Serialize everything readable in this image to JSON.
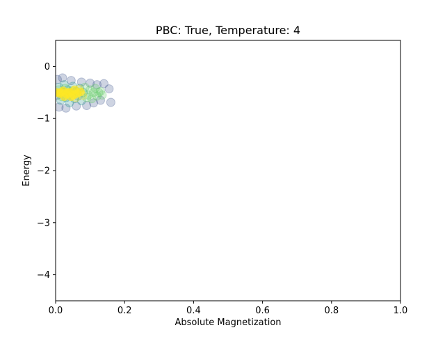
{
  "chart_data": {
    "type": "scatter",
    "title": "PBC: True, Temperature: 4",
    "xlabel": "Absolute Magnetization",
    "ylabel": "Energy",
    "xlim": [
      0.0,
      1.0
    ],
    "ylim": [
      -4.5,
      0.5
    ],
    "xticks": [
      {
        "value": 0.0,
        "label": "0.0"
      },
      {
        "value": 0.2,
        "label": "0.2"
      },
      {
        "value": 0.4,
        "label": "0.4"
      },
      {
        "value": 0.6,
        "label": "0.6"
      },
      {
        "value": 0.8,
        "label": "0.8"
      },
      {
        "value": 1.0,
        "label": "1.0"
      }
    ],
    "yticks": [
      {
        "value": 0,
        "label": "0"
      },
      {
        "value": -1,
        "label": "−1"
      },
      {
        "value": -2,
        "label": "−2"
      },
      {
        "value": -3,
        "label": "−3"
      },
      {
        "value": -4,
        "label": "−4"
      }
    ],
    "grid": false,
    "legend": "none",
    "colors": {
      "early": "#3b528b",
      "mid": "#21918c",
      "late": "#5ec962",
      "final": "#fde725"
    },
    "points": [
      {
        "x": 0.005,
        "y": -0.25
      },
      {
        "x": 0.01,
        "y": -0.78
      },
      {
        "x": 0.02,
        "y": -0.22
      },
      {
        "x": 0.03,
        "y": -0.8
      },
      {
        "x": 0.045,
        "y": -0.27
      },
      {
        "x": 0.06,
        "y": -0.76
      },
      {
        "x": 0.075,
        "y": -0.3
      },
      {
        "x": 0.09,
        "y": -0.75
      },
      {
        "x": 0.1,
        "y": -0.32
      },
      {
        "x": 0.11,
        "y": -0.7
      },
      {
        "x": 0.12,
        "y": -0.35
      },
      {
        "x": 0.13,
        "y": -0.65
      },
      {
        "x": 0.14,
        "y": -0.33
      },
      {
        "x": 0.155,
        "y": -0.43
      },
      {
        "x": 0.16,
        "y": -0.69
      },
      {
        "x": 0.005,
        "y": -0.55
      },
      {
        "x": 0.01,
        "y": -0.4
      },
      {
        "x": 0.015,
        "y": -0.65
      },
      {
        "x": 0.02,
        "y": -0.5
      },
      {
        "x": 0.025,
        "y": -0.35
      },
      {
        "x": 0.03,
        "y": -0.6
      },
      {
        "x": 0.035,
        "y": -0.45
      },
      {
        "x": 0.04,
        "y": -0.7
      },
      {
        "x": 0.045,
        "y": -0.52
      },
      {
        "x": 0.05,
        "y": -0.38
      },
      {
        "x": 0.055,
        "y": -0.62
      },
      {
        "x": 0.06,
        "y": -0.48
      },
      {
        "x": 0.065,
        "y": -0.57
      },
      {
        "x": 0.07,
        "y": -0.42
      },
      {
        "x": 0.075,
        "y": -0.66
      },
      {
        "x": 0.08,
        "y": -0.5
      },
      {
        "x": 0.085,
        "y": -0.4
      },
      {
        "x": 0.09,
        "y": -0.6
      },
      {
        "x": 0.095,
        "y": -0.55
      },
      {
        "x": 0.1,
        "y": -0.45
      },
      {
        "x": 0.105,
        "y": -0.62
      },
      {
        "x": 0.11,
        "y": -0.5
      },
      {
        "x": 0.115,
        "y": -0.42
      },
      {
        "x": 0.12,
        "y": -0.57
      },
      {
        "x": 0.125,
        "y": -0.5
      },
      {
        "x": 0.13,
        "y": -0.48
      },
      {
        "x": 0.135,
        "y": -0.55
      },
      {
        "x": 0.008,
        "y": -0.45
      },
      {
        "x": 0.018,
        "y": -0.58
      },
      {
        "x": 0.028,
        "y": -0.42
      },
      {
        "x": 0.038,
        "y": -0.55
      },
      {
        "x": 0.048,
        "y": -0.47
      },
      {
        "x": 0.058,
        "y": -0.6
      },
      {
        "x": 0.068,
        "y": -0.44
      },
      {
        "x": 0.078,
        "y": -0.56
      },
      {
        "x": 0.012,
        "y": -0.52
      },
      {
        "x": 0.022,
        "y": -0.47
      },
      {
        "x": 0.032,
        "y": -0.53
      },
      {
        "x": 0.042,
        "y": -0.5
      },
      {
        "x": 0.052,
        "y": -0.55
      },
      {
        "x": 0.062,
        "y": -0.52
      },
      {
        "x": 0.072,
        "y": -0.49
      },
      {
        "x": 0.003,
        "y": -0.5
      },
      {
        "x": 0.015,
        "y": -0.5
      },
      {
        "x": 0.035,
        "y": -0.5
      },
      {
        "x": 0.045,
        "y": -0.58
      },
      {
        "x": 0.025,
        "y": -0.58
      },
      {
        "x": 0.055,
        "y": -0.45
      }
    ]
  }
}
